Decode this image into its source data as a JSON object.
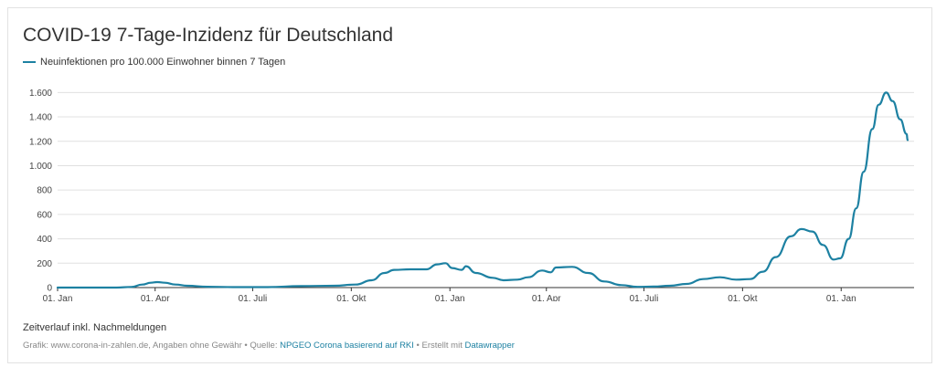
{
  "header": {
    "title": "COVID-19 7-Tage-Inzidenz für Deutschland"
  },
  "legend": {
    "label": "Neuinfektionen pro 100.000 Einwohner binnen 7 Tagen"
  },
  "colors": {
    "line": "#1d81a2",
    "grid": "#e0e0e0",
    "axis": "#333333"
  },
  "footer": {
    "note": "Zeitverlauf inkl. Nachmeldungen",
    "source_prefix": "Grafik: www.corona-in-zahlen.de, Angaben ohne Gewähr • Quelle: ",
    "source_link": "NPGEO Corona basierend auf RKI",
    "source_middle": " • Erstellt mit ",
    "tool_link": "Datawrapper"
  },
  "chart_data": {
    "type": "line",
    "xlabel": "",
    "ylabel": "",
    "ylim": [
      0,
      1700
    ],
    "yticks": [
      {
        "value": 0,
        "label": "0"
      },
      {
        "value": 200,
        "label": "200"
      },
      {
        "value": 400,
        "label": "400"
      },
      {
        "value": 600,
        "label": "600"
      },
      {
        "value": 800,
        "label": "800"
      },
      {
        "value": 1000,
        "label": "1.000"
      },
      {
        "value": 1200,
        "label": "1.200"
      },
      {
        "value": 1400,
        "label": "1.400"
      },
      {
        "value": 1600,
        "label": "1.600"
      }
    ],
    "xlim": [
      "2020-01-01",
      "2022-03-10"
    ],
    "xticks": [
      {
        "date": "2020-01-01",
        "label": "01. Jan"
      },
      {
        "date": "2020-04-01",
        "label": "01. Apr"
      },
      {
        "date": "2020-07-01",
        "label": "01. Juli"
      },
      {
        "date": "2020-10-01",
        "label": "01. Okt"
      },
      {
        "date": "2021-01-01",
        "label": "01. Jan"
      },
      {
        "date": "2021-04-01",
        "label": "01. Apr"
      },
      {
        "date": "2021-07-01",
        "label": "01. Juli"
      },
      {
        "date": "2021-10-01",
        "label": "01. Okt"
      },
      {
        "date": "2022-01-01",
        "label": "01. Jan"
      }
    ],
    "grid": true,
    "legend_position": "top-left",
    "series": [
      {
        "name": "Neuinfektionen pro 100.000 Einwohner binnen 7 Tagen",
        "points": [
          {
            "x": "2020-01-01",
            "y": 0
          },
          {
            "x": "2020-02-25",
            "y": 0
          },
          {
            "x": "2020-03-10",
            "y": 5
          },
          {
            "x": "2020-03-20",
            "y": 25
          },
          {
            "x": "2020-03-28",
            "y": 40
          },
          {
            "x": "2020-04-03",
            "y": 45
          },
          {
            "x": "2020-04-10",
            "y": 40
          },
          {
            "x": "2020-04-20",
            "y": 25
          },
          {
            "x": "2020-05-01",
            "y": 15
          },
          {
            "x": "2020-05-20",
            "y": 7
          },
          {
            "x": "2020-06-15",
            "y": 4
          },
          {
            "x": "2020-07-15",
            "y": 4
          },
          {
            "x": "2020-08-15",
            "y": 12
          },
          {
            "x": "2020-09-15",
            "y": 15
          },
          {
            "x": "2020-10-05",
            "y": 25
          },
          {
            "x": "2020-10-20",
            "y": 60
          },
          {
            "x": "2020-11-01",
            "y": 120
          },
          {
            "x": "2020-11-10",
            "y": 145
          },
          {
            "x": "2020-11-25",
            "y": 150
          },
          {
            "x": "2020-12-10",
            "y": 150
          },
          {
            "x": "2020-12-20",
            "y": 190
          },
          {
            "x": "2020-12-28",
            "y": 200
          },
          {
            "x": "2021-01-03",
            "y": 160
          },
          {
            "x": "2021-01-12",
            "y": 145
          },
          {
            "x": "2021-01-16",
            "y": 175
          },
          {
            "x": "2021-01-25",
            "y": 120
          },
          {
            "x": "2021-02-10",
            "y": 80
          },
          {
            "x": "2021-02-20",
            "y": 60
          },
          {
            "x": "2021-03-05",
            "y": 65
          },
          {
            "x": "2021-03-15",
            "y": 85
          },
          {
            "x": "2021-03-28",
            "y": 140
          },
          {
            "x": "2021-04-05",
            "y": 125
          },
          {
            "x": "2021-04-10",
            "y": 165
          },
          {
            "x": "2021-04-25",
            "y": 170
          },
          {
            "x": "2021-05-10",
            "y": 120
          },
          {
            "x": "2021-05-25",
            "y": 50
          },
          {
            "x": "2021-06-10",
            "y": 20
          },
          {
            "x": "2021-06-25",
            "y": 6
          },
          {
            "x": "2021-07-10",
            "y": 8
          },
          {
            "x": "2021-07-25",
            "y": 15
          },
          {
            "x": "2021-08-10",
            "y": 30
          },
          {
            "x": "2021-08-25",
            "y": 70
          },
          {
            "x": "2021-09-10",
            "y": 85
          },
          {
            "x": "2021-09-25",
            "y": 65
          },
          {
            "x": "2021-10-08",
            "y": 70
          },
          {
            "x": "2021-10-20",
            "y": 130
          },
          {
            "x": "2021-11-01",
            "y": 250
          },
          {
            "x": "2021-11-15",
            "y": 420
          },
          {
            "x": "2021-11-25",
            "y": 480
          },
          {
            "x": "2021-12-05",
            "y": 460
          },
          {
            "x": "2021-12-15",
            "y": 350
          },
          {
            "x": "2021-12-25",
            "y": 230
          },
          {
            "x": "2021-12-31",
            "y": 240
          },
          {
            "x": "2022-01-08",
            "y": 400
          },
          {
            "x": "2022-01-15",
            "y": 650
          },
          {
            "x": "2022-01-22",
            "y": 950
          },
          {
            "x": "2022-01-30",
            "y": 1300
          },
          {
            "x": "2022-02-05",
            "y": 1500
          },
          {
            "x": "2022-02-12",
            "y": 1600
          },
          {
            "x": "2022-02-18",
            "y": 1530
          },
          {
            "x": "2022-02-25",
            "y": 1380
          },
          {
            "x": "2022-03-03",
            "y": 1260
          },
          {
            "x": "2022-03-04",
            "y": 1210
          }
        ]
      }
    ]
  }
}
